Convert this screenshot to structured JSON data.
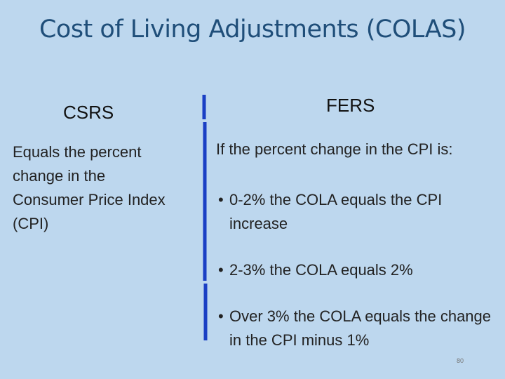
{
  "title": "Cost of Living Adjustments (COLAS)",
  "csrs": {
    "heading": "CSRS",
    "lines": [
      "Equals the percent",
      "change in the",
      "Consumer Price Index",
      "(CPI)"
    ]
  },
  "fers": {
    "heading": "FERS",
    "intro": "If the percent change in the CPI is:",
    "items": [
      "0-2% the COLA equals the CPI increase",
      "2-3% the COLA equals 2%",
      "Over 3% the COLA equals the change in the CPI minus 1%"
    ]
  },
  "page_number": "80"
}
